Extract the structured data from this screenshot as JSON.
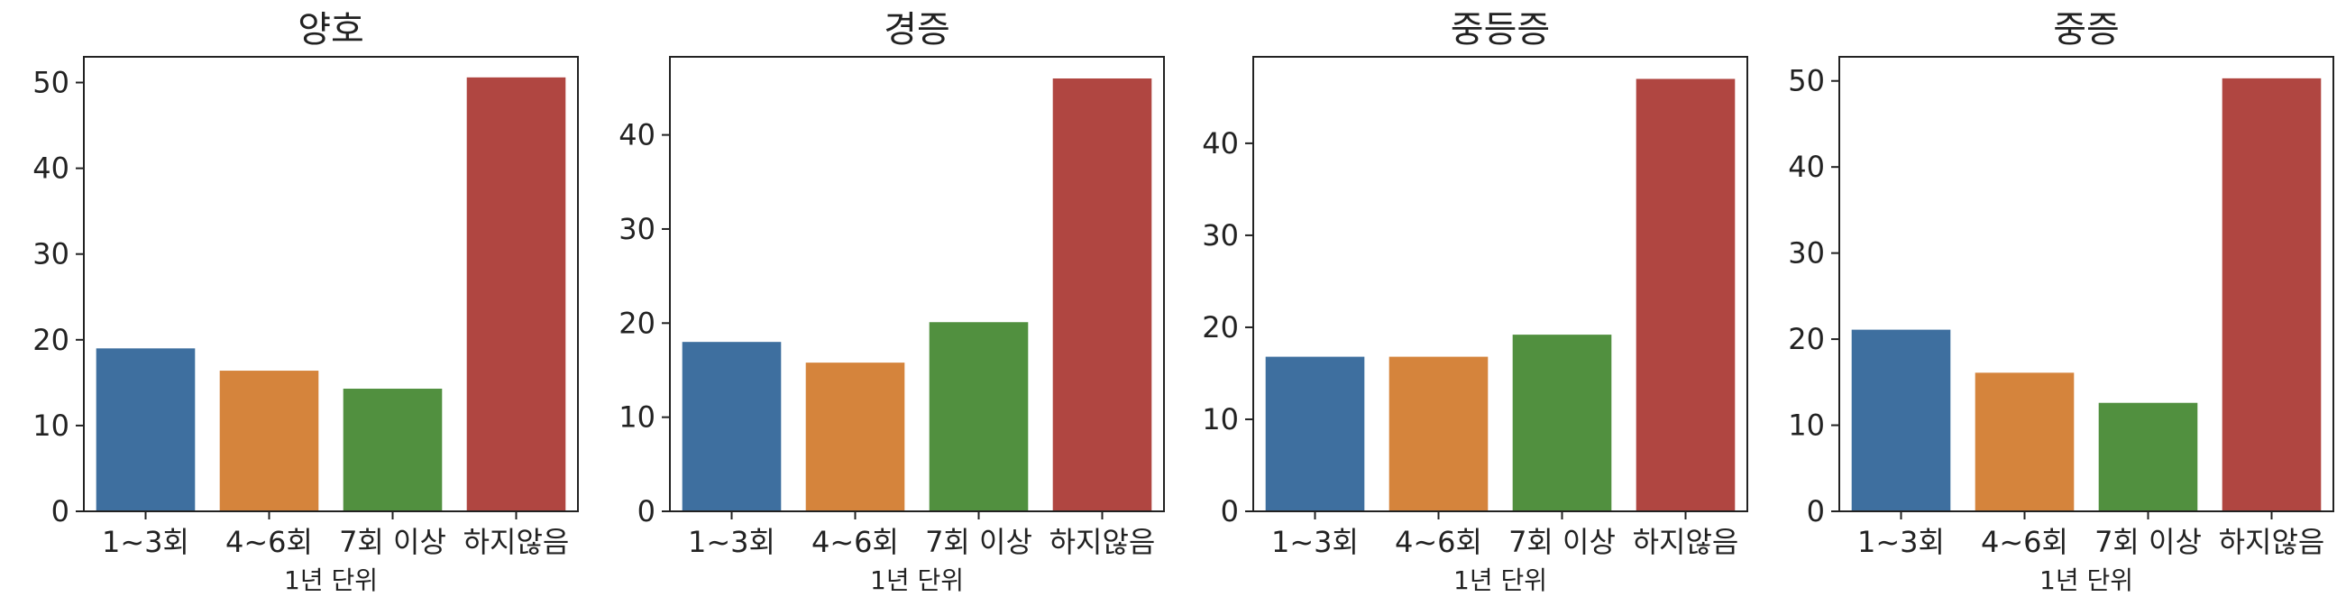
{
  "colors": {
    "1~3회": "#3e6f9f",
    "4~6회": "#d5843c",
    "7회 이상": "#51903f",
    "하지않음": "#b04641",
    "axis": "#222222"
  },
  "chart_data": [
    {
      "type": "bar",
      "title": "양호",
      "xlabel": "1년 단위",
      "ylabel": "",
      "categories": [
        "1~3회",
        "4~6회",
        "7회 이상",
        "하지않음"
      ],
      "values": [
        19.0,
        16.4,
        14.3,
        50.6
      ],
      "ylim": [
        0,
        53
      ],
      "yticks": [
        0,
        10,
        20,
        30,
        40,
        50
      ],
      "grid": false
    },
    {
      "type": "bar",
      "title": "경증",
      "xlabel": "1년 단위",
      "ylabel": "",
      "categories": [
        "1~3회",
        "4~6회",
        "7회 이상",
        "하지않음"
      ],
      "values": [
        18.0,
        15.8,
        20.1,
        46.0
      ],
      "ylim": [
        0,
        48.3
      ],
      "yticks": [
        0,
        10,
        20,
        30,
        40
      ],
      "grid": false
    },
    {
      "type": "bar",
      "title": "중등증",
      "xlabel": "1년 단위",
      "ylabel": "",
      "categories": [
        "1~3회",
        "4~6회",
        "7회 이상",
        "하지않음"
      ],
      "values": [
        16.8,
        16.8,
        19.2,
        47.0
      ],
      "ylim": [
        0,
        49.4
      ],
      "yticks": [
        0,
        10,
        20,
        30,
        40
      ],
      "grid": false
    },
    {
      "type": "bar",
      "title": "중증",
      "xlabel": "1년 단위",
      "ylabel": "",
      "categories": [
        "1~3회",
        "4~6회",
        "7회 이상",
        "하지않음"
      ],
      "values": [
        21.1,
        16.1,
        12.6,
        50.3
      ],
      "ylim": [
        0,
        52.8
      ],
      "yticks": [
        0,
        10,
        20,
        30,
        40,
        50
      ],
      "grid": false
    }
  ]
}
